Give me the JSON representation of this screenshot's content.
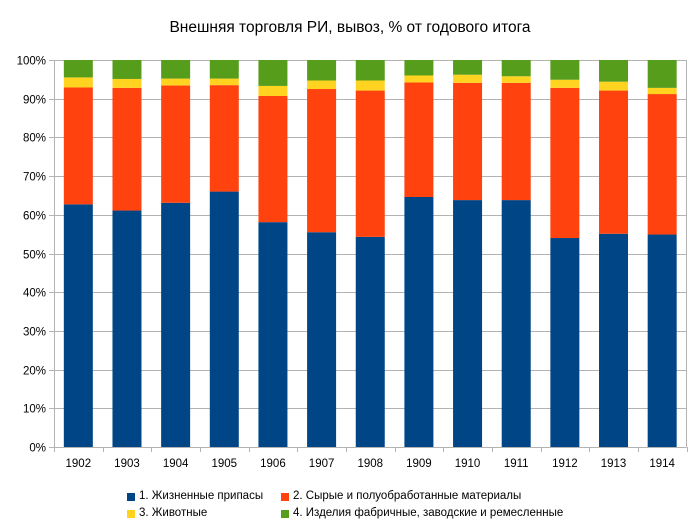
{
  "chart_data": {
    "type": "bar",
    "stacked": true,
    "title": "Внешняя торговля РИ, вывоз, % от годового итога",
    "xlabel": "",
    "ylabel": "",
    "ylim": [
      0,
      100
    ],
    "y_ticks": [
      "0%",
      "10%",
      "20%",
      "30%",
      "40%",
      "50%",
      "60%",
      "70%",
      "80%",
      "90%",
      "100%"
    ],
    "y_tick_values": [
      0,
      10,
      20,
      30,
      40,
      50,
      60,
      70,
      80,
      90,
      100
    ],
    "grid": true,
    "legend_position": "bottom",
    "categories": [
      "1902",
      "1903",
      "1904",
      "1905",
      "1906",
      "1907",
      "1908",
      "1909",
      "1910",
      "1911",
      "1912",
      "1913",
      "1914"
    ],
    "series": [
      {
        "name": "1. Жизненные припасы",
        "color": "#004586",
        "values": [
          62.7,
          61.1,
          63.1,
          66.0,
          58.1,
          55.5,
          54.3,
          64.6,
          63.8,
          63.8,
          54.0,
          55.1,
          54.9
        ]
      },
      {
        "name": "2. Сырые и полуобработанные материалы",
        "color": "#ff420e",
        "values": [
          30.2,
          31.7,
          30.3,
          27.5,
          32.6,
          37.0,
          37.8,
          29.6,
          30.3,
          30.3,
          38.8,
          37.0,
          36.3
        ]
      },
      {
        "name": "3. Животные",
        "color": "#ffd320",
        "values": [
          2.6,
          2.3,
          1.8,
          1.7,
          2.6,
          2.2,
          2.6,
          1.8,
          2.1,
          1.7,
          2.1,
          2.3,
          1.6
        ]
      },
      {
        "name": "4. Изделия фабричные, заводские и ремесленные",
        "color": "#579d1c",
        "values": [
          4.5,
          4.9,
          4.8,
          4.8,
          6.7,
          5.3,
          5.3,
          4.0,
          3.8,
          4.2,
          5.1,
          5.6,
          7.2
        ]
      }
    ]
  }
}
